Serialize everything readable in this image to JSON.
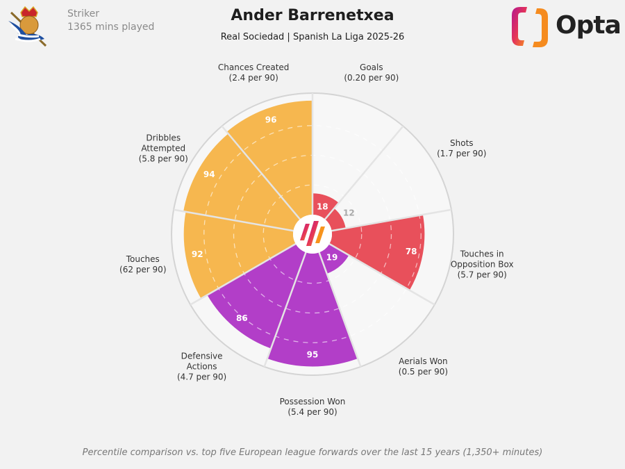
{
  "header": {
    "role": "Striker",
    "minutes": "1365 mins played",
    "title": "Ander Barrenetxea",
    "subtitle": "Real Sociedad | Spanish La Liga 2025-26",
    "club_crest": "Real Sociedad crest",
    "brand": "Opta"
  },
  "footnote": "Percentile comparison vs. top five European league forwards over the last 15 years (1,350+ minutes)",
  "colors": {
    "attacking": "#e8505b",
    "defending": "#b23ec8",
    "possession": "#f6b74f",
    "background_slice": "#f7f7f7"
  },
  "chart_data": {
    "type": "pie",
    "subtype": "polar-percentile",
    "rlim": [
      0,
      100
    ],
    "grid": "dashed rings",
    "metrics": [
      {
        "label": [
          "Goals",
          "(0.20 per 90)"
        ],
        "percentile": 18,
        "group": "attacking"
      },
      {
        "label": [
          "Shots",
          "(1.7 per 90)"
        ],
        "percentile": 12,
        "group": "attacking"
      },
      {
        "label": [
          "Touches in",
          "Opposition Box",
          "(5.7 per 90)"
        ],
        "percentile": 78,
        "group": "attacking"
      },
      {
        "label": [
          "Aerials Won",
          "(0.5 per 90)"
        ],
        "percentile": 19,
        "group": "defending"
      },
      {
        "label": [
          "Possession Won",
          "(5.4 per 90)"
        ],
        "percentile": 95,
        "group": "defending"
      },
      {
        "label": [
          "Defensive",
          "Actions",
          "(4.7 per 90)"
        ],
        "percentile": 86,
        "group": "defending"
      },
      {
        "label": [
          "Touches",
          "(62 per 90)"
        ],
        "percentile": 92,
        "group": "possession"
      },
      {
        "label": [
          "Dribbles",
          "Attempted",
          "(5.8 per 90)"
        ],
        "percentile": 94,
        "group": "possession"
      },
      {
        "label": [
          "Chances Created",
          "(2.4 per 90)"
        ],
        "percentile": 96,
        "group": "possession"
      }
    ]
  }
}
